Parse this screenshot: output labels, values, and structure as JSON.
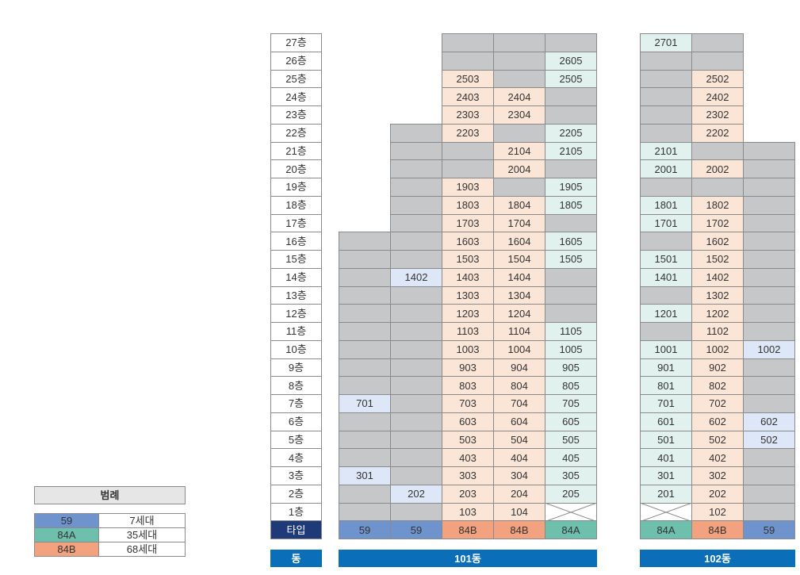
{
  "floors": [
    "27층",
    "26층",
    "25층",
    "24층",
    "23층",
    "22층",
    "21층",
    "20층",
    "19층",
    "18층",
    "17층",
    "16층",
    "15층",
    "14층",
    "13층",
    "12층",
    "11층",
    "10층",
    "9층",
    "8층",
    "7층",
    "6층",
    "5층",
    "4층",
    "3층",
    "2층",
    "1층"
  ],
  "type_label": "타입",
  "dong_label": "동",
  "legend": {
    "title": "범례",
    "rows": [
      {
        "type": "59",
        "count": "7세대",
        "color": "#6f93cc"
      },
      {
        "type": "84A",
        "count": "35세대",
        "color": "#6fbfad"
      },
      {
        "type": "84B",
        "count": "68세대",
        "color": "#f3a27f"
      }
    ]
  },
  "buildings": [
    {
      "name": "101동",
      "lines": [
        {
          "type": "59",
          "top_floor": 16,
          "units": [
            {
              "floor": 7,
              "number": "701"
            },
            {
              "floor": 3,
              "number": "301"
            }
          ]
        },
        {
          "type": "59",
          "top_floor": 22,
          "units": [
            {
              "floor": 14,
              "number": "1402"
            },
            {
              "floor": 2,
              "number": "202"
            }
          ]
        },
        {
          "type": "84B",
          "top_floor": 27,
          "units": [
            {
              "floor": 25,
              "number": "2503"
            },
            {
              "floor": 24,
              "number": "2403"
            },
            {
              "floor": 23,
              "number": "2303"
            },
            {
              "floor": 22,
              "number": "2203"
            },
            {
              "floor": 19,
              "number": "1903"
            },
            {
              "floor": 18,
              "number": "1803"
            },
            {
              "floor": 17,
              "number": "1703"
            },
            {
              "floor": 16,
              "number": "1603"
            },
            {
              "floor": 15,
              "number": "1503"
            },
            {
              "floor": 14,
              "number": "1403"
            },
            {
              "floor": 13,
              "number": "1303"
            },
            {
              "floor": 12,
              "number": "1203"
            },
            {
              "floor": 11,
              "number": "1103"
            },
            {
              "floor": 10,
              "number": "1003"
            },
            {
              "floor": 9,
              "number": "903"
            },
            {
              "floor": 8,
              "number": "803"
            },
            {
              "floor": 7,
              "number": "703"
            },
            {
              "floor": 6,
              "number": "603"
            },
            {
              "floor": 5,
              "number": "503"
            },
            {
              "floor": 4,
              "number": "403"
            },
            {
              "floor": 3,
              "number": "303"
            },
            {
              "floor": 2,
              "number": "203"
            },
            {
              "floor": 1,
              "number": "103"
            }
          ]
        },
        {
          "type": "84B",
          "top_floor": 27,
          "units": [
            {
              "floor": 24,
              "number": "2404"
            },
            {
              "floor": 23,
              "number": "2304"
            },
            {
              "floor": 21,
              "number": "2104"
            },
            {
              "floor": 20,
              "number": "2004"
            },
            {
              "floor": 18,
              "number": "1804"
            },
            {
              "floor": 17,
              "number": "1704"
            },
            {
              "floor": 16,
              "number": "1604"
            },
            {
              "floor": 15,
              "number": "1504"
            },
            {
              "floor": 14,
              "number": "1404"
            },
            {
              "floor": 13,
              "number": "1304"
            },
            {
              "floor": 12,
              "number": "1204"
            },
            {
              "floor": 11,
              "number": "1104"
            },
            {
              "floor": 10,
              "number": "1004"
            },
            {
              "floor": 9,
              "number": "904"
            },
            {
              "floor": 8,
              "number": "804"
            },
            {
              "floor": 7,
              "number": "704"
            },
            {
              "floor": 6,
              "number": "604"
            },
            {
              "floor": 5,
              "number": "504"
            },
            {
              "floor": 4,
              "number": "404"
            },
            {
              "floor": 3,
              "number": "304"
            },
            {
              "floor": 2,
              "number": "204"
            },
            {
              "floor": 1,
              "number": "104"
            }
          ]
        },
        {
          "type": "84A",
          "top_floor": 27,
          "empty_floors": [
            1
          ],
          "units": [
            {
              "floor": 26,
              "number": "2605"
            },
            {
              "floor": 25,
              "number": "2505"
            },
            {
              "floor": 22,
              "number": "2205"
            },
            {
              "floor": 21,
              "number": "2105"
            },
            {
              "floor": 19,
              "number": "1905"
            },
            {
              "floor": 18,
              "number": "1805"
            },
            {
              "floor": 16,
              "number": "1605"
            },
            {
              "floor": 15,
              "number": "1505"
            },
            {
              "floor": 11,
              "number": "1105"
            },
            {
              "floor": 10,
              "number": "1005"
            },
            {
              "floor": 9,
              "number": "905"
            },
            {
              "floor": 8,
              "number": "805"
            },
            {
              "floor": 7,
              "number": "705"
            },
            {
              "floor": 6,
              "number": "605"
            },
            {
              "floor": 5,
              "number": "505"
            },
            {
              "floor": 4,
              "number": "405"
            },
            {
              "floor": 3,
              "number": "305"
            },
            {
              "floor": 2,
              "number": "205"
            }
          ]
        }
      ]
    },
    {
      "name": "102동",
      "lines": [
        {
          "type": "84A",
          "top_floor": 27,
          "empty_floors": [
            1
          ],
          "units": [
            {
              "floor": 27,
              "number": "2701"
            },
            {
              "floor": 21,
              "number": "2101"
            },
            {
              "floor": 20,
              "number": "2001"
            },
            {
              "floor": 18,
              "number": "1801"
            },
            {
              "floor": 17,
              "number": "1701"
            },
            {
              "floor": 15,
              "number": "1501"
            },
            {
              "floor": 14,
              "number": "1401"
            },
            {
              "floor": 12,
              "number": "1201"
            },
            {
              "floor": 10,
              "number": "1001"
            },
            {
              "floor": 9,
              "number": "901"
            },
            {
              "floor": 8,
              "number": "801"
            },
            {
              "floor": 7,
              "number": "701"
            },
            {
              "floor": 6,
              "number": "601"
            },
            {
              "floor": 5,
              "number": "501"
            },
            {
              "floor": 4,
              "number": "401"
            },
            {
              "floor": 3,
              "number": "301"
            },
            {
              "floor": 2,
              "number": "201"
            }
          ]
        },
        {
          "type": "84B",
          "top_floor": 27,
          "units": [
            {
              "floor": 25,
              "number": "2502"
            },
            {
              "floor": 24,
              "number": "2402"
            },
            {
              "floor": 23,
              "number": "2302"
            },
            {
              "floor": 22,
              "number": "2202"
            },
            {
              "floor": 20,
              "number": "2002"
            },
            {
              "floor": 18,
              "number": "1802"
            },
            {
              "floor": 17,
              "number": "1702"
            },
            {
              "floor": 16,
              "number": "1602"
            },
            {
              "floor": 15,
              "number": "1502"
            },
            {
              "floor": 14,
              "number": "1402"
            },
            {
              "floor": 13,
              "number": "1302"
            },
            {
              "floor": 12,
              "number": "1202"
            },
            {
              "floor": 11,
              "number": "1102"
            },
            {
              "floor": 10,
              "number": "1002"
            },
            {
              "floor": 9,
              "number": "902"
            },
            {
              "floor": 8,
              "number": "802"
            },
            {
              "floor": 7,
              "number": "702"
            },
            {
              "floor": 6,
              "number": "602"
            },
            {
              "floor": 5,
              "number": "502"
            },
            {
              "floor": 4,
              "number": "402"
            },
            {
              "floor": 3,
              "number": "302"
            },
            {
              "floor": 2,
              "number": "202"
            },
            {
              "floor": 1,
              "number": "102"
            }
          ]
        },
        {
          "type": "59",
          "top_floor": 21,
          "units": [
            {
              "floor": 10,
              "number": "1002"
            },
            {
              "floor": 6,
              "number": "602"
            },
            {
              "floor": 5,
              "number": "502"
            }
          ]
        }
      ]
    }
  ]
}
